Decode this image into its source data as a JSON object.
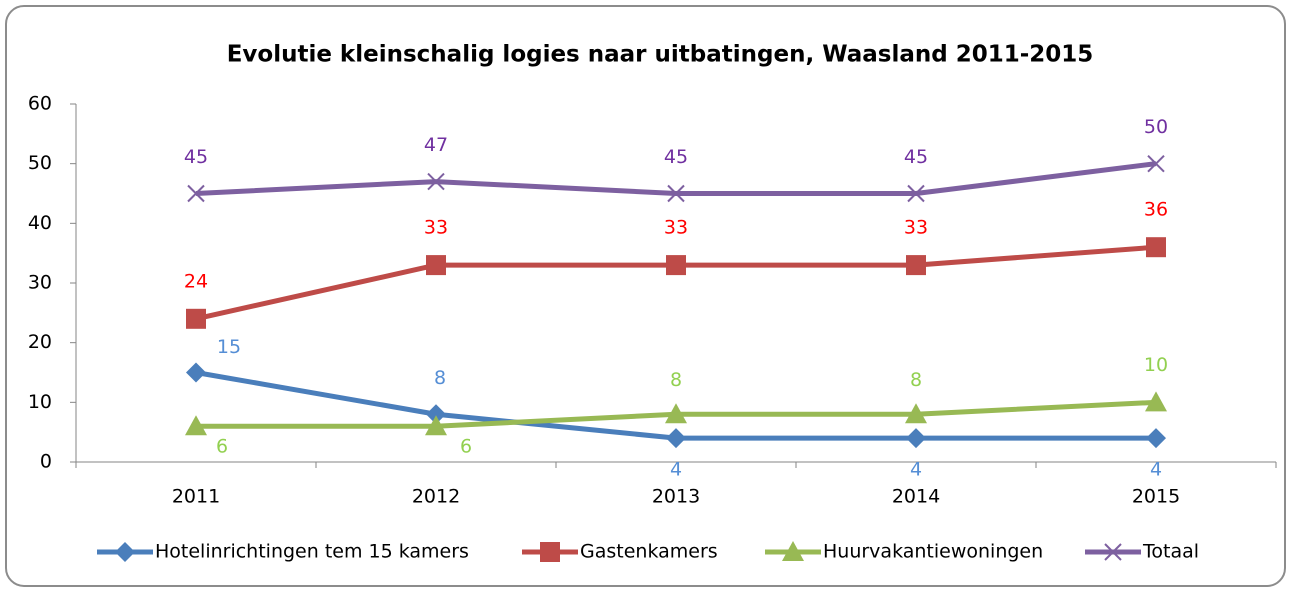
{
  "chart_data": {
    "type": "line",
    "title": "Evolutie kleinschalig logies naar uitbatingen, Waasland 2011-2015",
    "categories": [
      "2011",
      "2012",
      "2013",
      "2014",
      "2015"
    ],
    "series": [
      {
        "name": "Hotelinrichtingen tem 15 kamers",
        "color": "#4a7ebb",
        "label_color": "#558ed5",
        "marker": "diamond",
        "values": [
          15,
          8,
          4,
          4,
          4
        ]
      },
      {
        "name": "Gastenkamers",
        "color": "#be4b48",
        "label_color": "#ff0000",
        "marker": "square",
        "values": [
          24,
          33,
          33,
          33,
          36
        ]
      },
      {
        "name": "Huurvakantiewoningen",
        "color": "#98b954",
        "label_color": "#92d050",
        "marker": "triangle",
        "values": [
          6,
          6,
          8,
          8,
          10
        ]
      },
      {
        "name": "Totaal",
        "color": "#7d60a0",
        "label_color": "#7030a0",
        "marker": "x",
        "values": [
          45,
          47,
          45,
          45,
          50
        ]
      }
    ],
    "ylim": [
      0,
      60
    ],
    "yticks": [
      0,
      10,
      20,
      30,
      40,
      50,
      60
    ],
    "legend": "bottom"
  }
}
